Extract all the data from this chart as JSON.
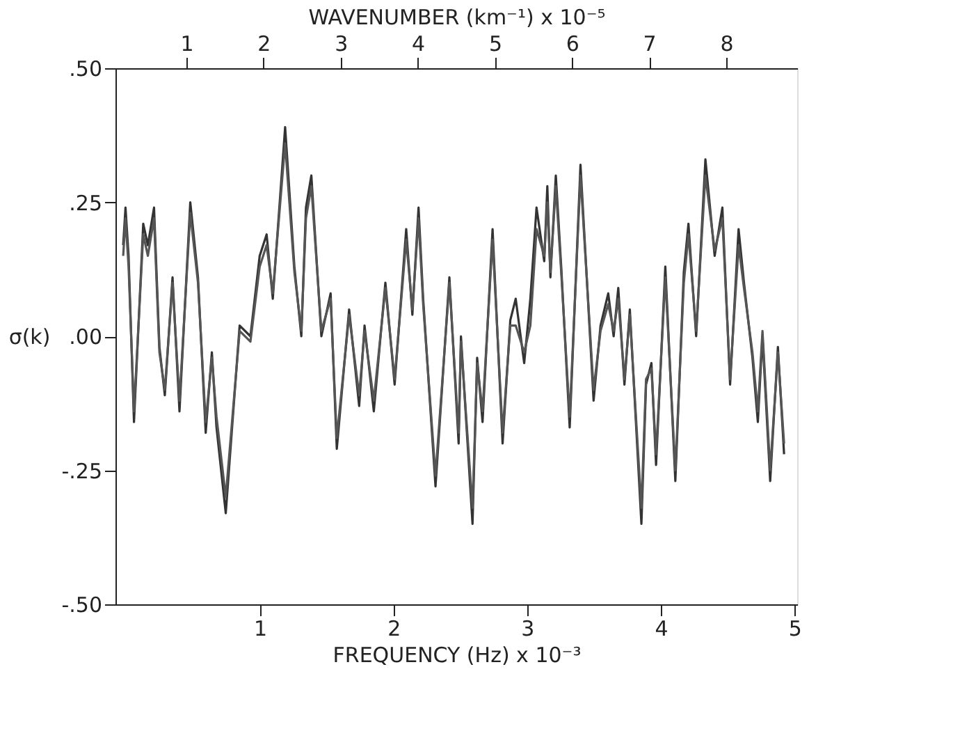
{
  "chart_data": {
    "type": "line",
    "xlabel": "WAVENUMBER (km⁻¹) x 10⁻⁵",
    "x2label": "FREQUENCY (Hz) x 10⁻³",
    "ylabel": "σ(k)",
    "x": [
      0.18,
      0.21,
      0.25,
      0.32,
      0.44,
      0.5,
      0.58,
      0.65,
      0.72,
      0.82,
      0.91,
      1.05,
      1.15,
      1.25,
      1.33,
      1.39,
      1.51,
      1.69,
      1.83,
      1.95,
      2.04,
      2.12,
      2.28,
      2.4,
      2.49,
      2.55,
      2.62,
      2.75,
      2.87,
      2.95,
      3.11,
      3.24,
      3.31,
      3.43,
      3.58,
      3.7,
      3.85,
      3.93,
      4.01,
      4.07,
      4.23,
      4.41,
      4.53,
      4.56,
      4.71,
      4.77,
      4.84,
      4.97,
      5.1,
      5.2,
      5.27,
      5.38,
      5.46,
      5.54,
      5.64,
      5.68,
      5.72,
      5.79,
      5.86,
      5.97,
      6.11,
      6.28,
      6.37,
      6.47,
      6.54,
      6.6,
      6.68,
      6.75,
      6.9,
      6.96,
      7.03,
      7.09,
      7.21,
      7.34,
      7.45,
      7.51,
      7.61,
      7.73,
      7.85,
      7.95,
      8.05,
      8.16,
      8.23,
      8.34,
      8.41,
      8.47,
      8.57,
      8.67,
      8.75
    ],
    "series": [
      {
        "color": "#333333",
        "values": [
          0.17,
          0.24,
          0.15,
          -0.16,
          0.21,
          0.17,
          0.24,
          -0.02,
          -0.11,
          0.11,
          -0.14,
          0.25,
          0.11,
          -0.18,
          -0.03,
          -0.17,
          -0.33,
          0.02,
          0.0,
          0.15,
          0.19,
          0.07,
          0.39,
          0.13,
          0.0,
          0.24,
          0.3,
          0.0,
          0.08,
          -0.21,
          0.05,
          -0.13,
          0.02,
          -0.14,
          0.1,
          -0.09,
          0.2,
          0.04,
          0.24,
          0.07,
          -0.28,
          0.11,
          -0.2,
          0.0,
          -0.35,
          -0.04,
          -0.16,
          0.2,
          -0.2,
          0.03,
          0.07,
          -0.05,
          0.07,
          0.24,
          0.14,
          0.28,
          0.11,
          0.3,
          0.13,
          -0.17,
          0.32,
          -0.12,
          0.02,
          0.08,
          0.0,
          0.09,
          -0.09,
          0.05,
          -0.35,
          -0.09,
          -0.05,
          -0.24,
          0.13,
          -0.27,
          0.12,
          0.21,
          0.0,
          0.33,
          0.15,
          0.24,
          -0.09,
          0.2,
          0.1,
          -0.04,
          -0.16,
          0.0,
          -0.27,
          -0.02,
          -0.22
        ]
      },
      {
        "color": "#555555",
        "values": [
          0.15,
          0.22,
          0.13,
          -0.14,
          0.19,
          0.15,
          0.22,
          -0.03,
          -0.1,
          0.1,
          -0.12,
          0.23,
          0.1,
          -0.16,
          -0.04,
          -0.15,
          -0.3,
          0.01,
          -0.01,
          0.13,
          0.17,
          0.08,
          0.36,
          0.12,
          0.01,
          0.22,
          0.28,
          0.01,
          0.07,
          -0.19,
          0.04,
          -0.11,
          0.01,
          -0.12,
          0.09,
          -0.08,
          0.18,
          0.05,
          0.22,
          0.06,
          -0.26,
          0.1,
          -0.18,
          -0.01,
          -0.32,
          -0.05,
          -0.14,
          0.18,
          -0.18,
          0.02,
          0.02,
          -0.03,
          0.02,
          0.2,
          0.15,
          0.25,
          0.12,
          0.28,
          0.12,
          -0.15,
          0.3,
          -0.1,
          0.01,
          0.06,
          0.01,
          0.07,
          -0.08,
          0.04,
          -0.32,
          -0.08,
          -0.06,
          -0.22,
          0.11,
          -0.25,
          0.1,
          0.19,
          0.01,
          0.3,
          0.16,
          0.22,
          -0.08,
          0.17,
          0.09,
          -0.03,
          -0.14,
          0.01,
          -0.25,
          -0.03,
          -0.2
        ]
      }
    ],
    "xlim": [
      0.08,
      8.92
    ],
    "xticks": [
      1,
      2,
      3,
      4,
      5,
      6,
      7,
      8
    ],
    "x2lim": [
      -0.08,
      5.02
    ],
    "x2ticks": [
      1,
      2,
      3,
      4,
      5
    ],
    "ylim": [
      -0.5,
      0.5
    ],
    "yticks": [
      {
        "value": -0.5,
        "label": "-.50"
      },
      {
        "value": -0.25,
        "label": "-.25"
      },
      {
        "value": 0,
        "label": ".00"
      },
      {
        "value": 0.25,
        "label": ".25"
      },
      {
        "value": 0.5,
        "label": ".50"
      }
    ],
    "grid": false,
    "line_style": "solid",
    "marker": "none"
  }
}
